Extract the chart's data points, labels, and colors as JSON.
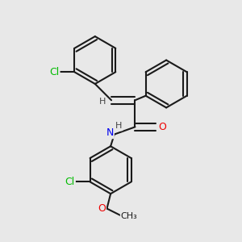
{
  "background_color": "#e8e8e8",
  "bond_color": "#1a1a1a",
  "bond_width": 1.5,
  "dbo": 0.055,
  "atom_colors": {
    "Cl": "#00bb00",
    "N": "#0000ee",
    "O": "#ee0000",
    "H": "#444444",
    "C": "#1a1a1a"
  },
  "figsize": [
    3.0,
    3.0
  ],
  "dpi": 100,
  "xlim": [
    -1.6,
    1.6
  ],
  "ylim": [
    -1.6,
    1.6
  ]
}
